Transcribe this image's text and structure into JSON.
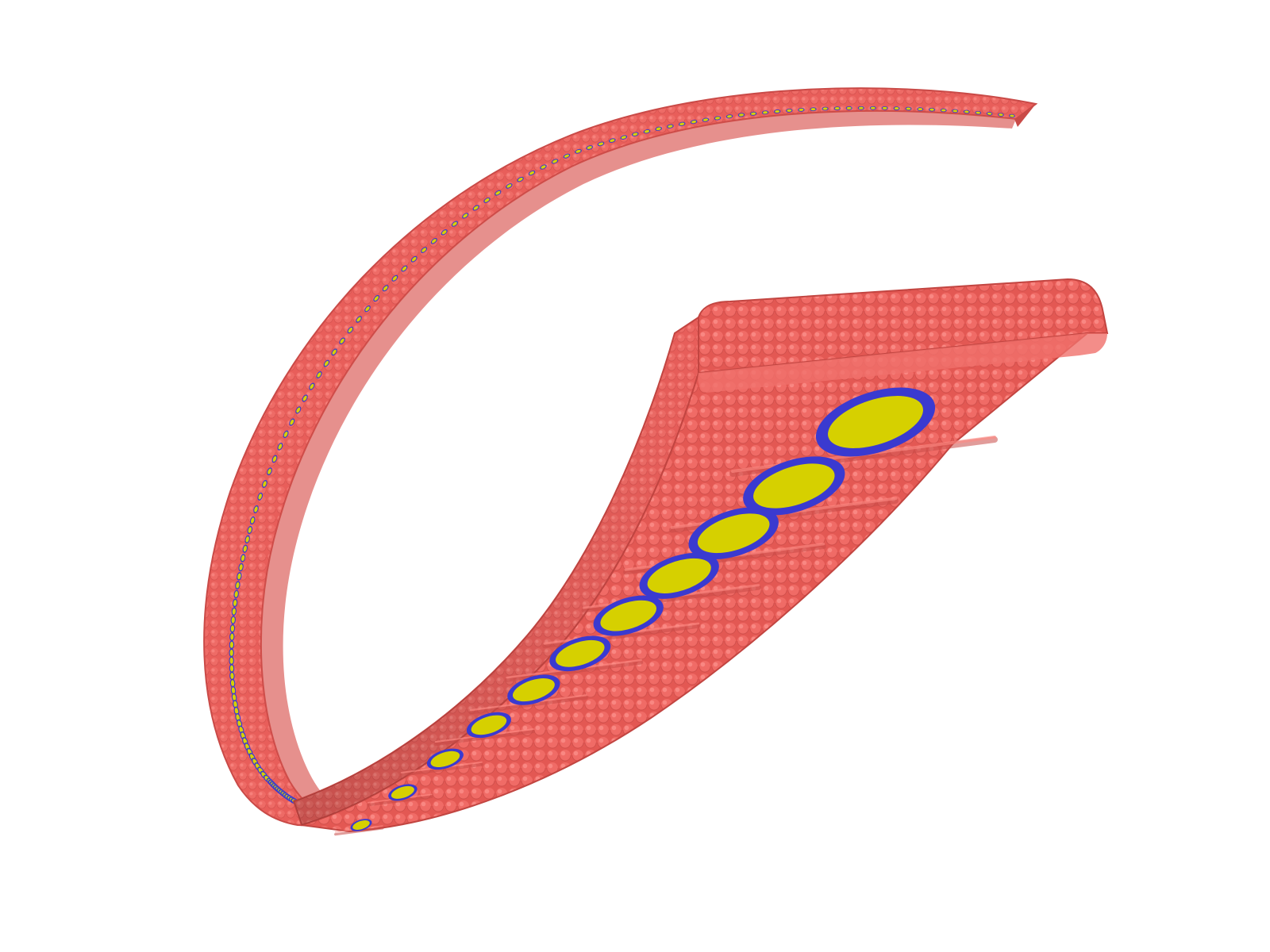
{
  "scene": {
    "background_color": "#ffffff",
    "strip_body_color": "#e85e5a",
    "strip_edge_color": "#c94a47",
    "strip_highlight_color": "#ff8c86",
    "inclusion_shell_color": "#3a3ad0",
    "inclusion_core_color": "#d6d000",
    "large_inclusions_visible": 11,
    "small_inclusions_visible": 150
  }
}
